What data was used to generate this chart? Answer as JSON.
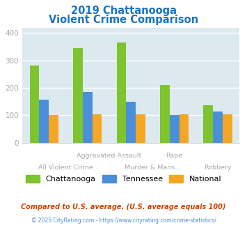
{
  "title_line1": "2019 Chattanooga",
  "title_line2": "Violent Crime Comparison",
  "chattanooga": [
    281,
    344,
    365,
    210,
    136
  ],
  "tennessee": [
    157,
    185,
    149,
    100,
    113
  ],
  "national": [
    102,
    103,
    103,
    104,
    103
  ],
  "bar_colors": {
    "chattanooga": "#7dc42e",
    "tennessee": "#4a90d9",
    "national": "#f5a623"
  },
  "ylim": [
    0,
    420
  ],
  "yticks": [
    0,
    100,
    200,
    300,
    400
  ],
  "plot_bg": "#dce9ee",
  "title_color": "#1a73c1",
  "legend_labels": [
    "Chattanooga",
    "Tennessee",
    "National"
  ],
  "footnote": "Compared to U.S. average. (U.S. average equals 100)",
  "copyright": "© 2025 CityRating.com - https://www.cityrating.com/crime-statistics/",
  "grid_color": "#ffffff",
  "bar_width": 0.22,
  "label_color": "#aaaaaa",
  "footnote_color": "#cc4400",
  "copyright_color": "#4a90d9"
}
